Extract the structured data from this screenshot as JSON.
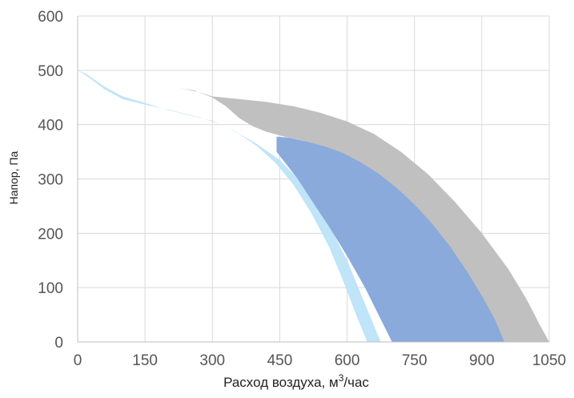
{
  "chart_data": {
    "type": "area",
    "xlabel": "Расход воздуха, м",
    "xlabel_sup": "3",
    "xlabel_suffix": "/час",
    "ylabel": "Напор, Па",
    "xlim": [
      0,
      1050
    ],
    "ylim": [
      0,
      600
    ],
    "xticks": [
      "0",
      "150",
      "300",
      "450",
      "600",
      "750",
      "900",
      "1050"
    ],
    "yticks": [
      "0",
      "100",
      "200",
      "300",
      "400",
      "500",
      "600"
    ],
    "grid": true,
    "bands": [
      {
        "color": "#c0c0c0",
        "upper": [
          [
            0,
            500
          ],
          [
            30,
            487
          ],
          [
            60,
            478
          ],
          [
            100,
            469
          ],
          [
            150,
            464
          ],
          [
            200,
            466
          ],
          [
            230,
            467
          ],
          [
            270,
            460
          ],
          [
            300,
            452
          ],
          [
            360,
            447
          ],
          [
            420,
            442
          ],
          [
            480,
            434
          ],
          [
            540,
            422
          ],
          [
            600,
            406
          ],
          [
            660,
            383
          ],
          [
            720,
            350
          ],
          [
            780,
            309
          ],
          [
            840,
            258
          ],
          [
            900,
            200
          ],
          [
            960,
            133
          ],
          [
            1000,
            78
          ],
          [
            1030,
            30
          ],
          [
            1050,
            0
          ]
        ],
        "lower": [
          [
            950,
            0
          ],
          [
            920,
            45
          ],
          [
            890,
            95
          ],
          [
            860,
            137
          ],
          [
            820,
            185
          ],
          [
            780,
            225
          ],
          [
            740,
            260
          ],
          [
            700,
            290
          ],
          [
            660,
            315
          ],
          [
            620,
            334
          ],
          [
            580,
            350
          ],
          [
            540,
            362
          ],
          [
            500,
            371
          ],
          [
            460,
            378
          ],
          [
            420,
            387
          ],
          [
            390,
            397
          ],
          [
            360,
            412
          ],
          [
            330,
            434
          ],
          [
            300,
            450
          ],
          [
            260,
            463
          ],
          [
            230,
            467
          ],
          [
            200,
            466
          ],
          [
            150,
            464
          ],
          [
            100,
            469
          ],
          [
            60,
            478
          ],
          [
            30,
            487
          ],
          [
            0,
            500
          ]
        ]
      },
      {
        "color": "#c0e4f8",
        "upper": [
          [
            0,
            500
          ],
          [
            20,
            493
          ],
          [
            60,
            470
          ],
          [
            100,
            452
          ],
          [
            150,
            440
          ],
          [
            200,
            427
          ],
          [
            250,
            417
          ],
          [
            300,
            407
          ],
          [
            350,
            388
          ],
          [
            400,
            364
          ],
          [
            450,
            335
          ],
          [
            500,
            292
          ],
          [
            550,
            231
          ],
          [
            600,
            150
          ],
          [
            650,
            50
          ],
          [
            675,
            0
          ]
        ],
        "lower": [
          [
            645,
            0
          ],
          [
            620,
            50
          ],
          [
            590,
            115
          ],
          [
            560,
            175
          ],
          [
            520,
            238
          ],
          [
            480,
            290
          ],
          [
            440,
            330
          ],
          [
            400,
            360
          ],
          [
            360,
            383
          ],
          [
            320,
            400
          ],
          [
            270,
            414
          ],
          [
            210,
            426
          ],
          [
            150,
            437
          ],
          [
            100,
            447
          ],
          [
            60,
            465
          ],
          [
            25,
            487
          ],
          [
            0,
            500
          ]
        ]
      },
      {
        "color": "#8aaadc",
        "upper": [
          [
            443,
            378
          ],
          [
            470,
            376
          ],
          [
            510,
            369
          ],
          [
            550,
            360
          ],
          [
            590,
            348
          ],
          [
            630,
            331
          ],
          [
            670,
            310
          ],
          [
            710,
            284
          ],
          [
            750,
            253
          ],
          [
            790,
            217
          ],
          [
            830,
            175
          ],
          [
            870,
            126
          ],
          [
            900,
            85
          ],
          [
            930,
            40
          ],
          [
            950,
            0
          ]
        ],
        "lower": [
          [
            700,
            0
          ],
          [
            670,
            50
          ],
          [
            640,
            100
          ],
          [
            600,
            158
          ],
          [
            560,
            212
          ],
          [
            520,
            262
          ],
          [
            490,
            300
          ],
          [
            460,
            332
          ],
          [
            443,
            350
          ]
        ]
      }
    ]
  }
}
